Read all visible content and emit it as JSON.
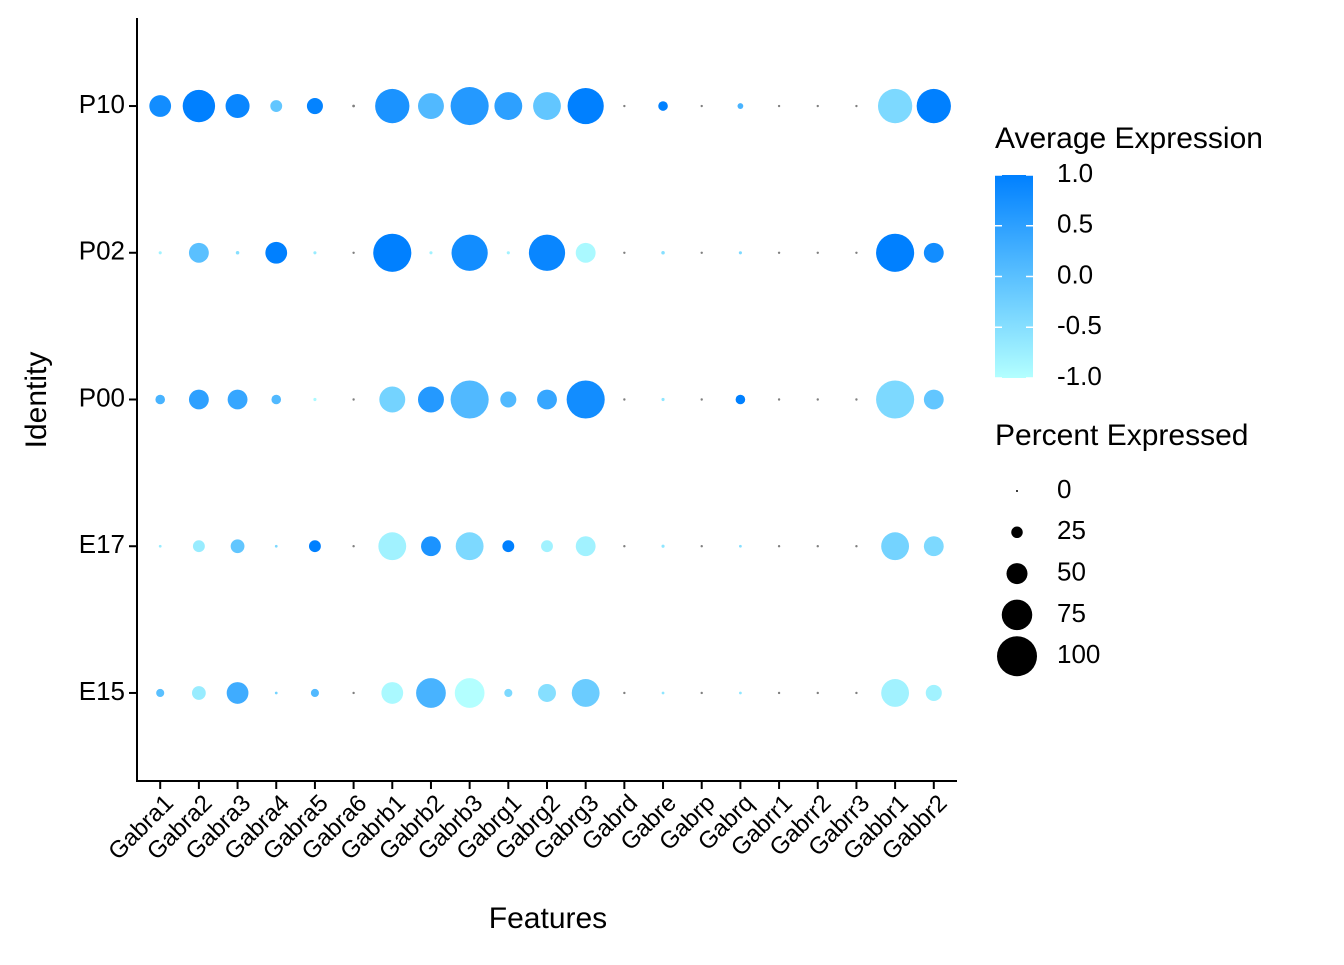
{
  "chart_data": {
    "type": "dotplot",
    "xlabel": "Features",
    "ylabel": "Identity",
    "categories": [
      "Gabra1",
      "Gabra2",
      "Gabra3",
      "Gabra4",
      "Gabra5",
      "Gabra6",
      "Gabrb1",
      "Gabrb2",
      "Gabrb3",
      "Gabrg1",
      "Gabrg2",
      "Gabrg3",
      "Gabrd",
      "Gabre",
      "Gabrp",
      "Gabrq",
      "Gabrr1",
      "Gabrr2",
      "Gabrr3",
      "Gabbr1",
      "Gabbr2"
    ],
    "series": [
      {
        "name": "E15",
        "avg_exp": [
          0.0,
          -0.7,
          0.3,
          -0.3,
          0.1,
          null,
          -0.9,
          0.2,
          -1.0,
          -0.4,
          -0.5,
          -0.2,
          null,
          -0.6,
          null,
          -0.6,
          null,
          null,
          null,
          -0.8,
          -0.8
        ],
        "pct_exp": [
          16,
          31,
          52,
          2,
          16,
          1,
          52,
          73,
          73,
          16,
          42,
          68,
          1,
          2,
          1,
          2,
          1,
          1,
          1,
          68,
          37
        ]
      },
      {
        "name": "E17",
        "avg_exp": [
          -0.7,
          -0.7,
          -0.1,
          -0.4,
          1.0,
          null,
          -0.8,
          0.7,
          -0.4,
          1.0,
          -0.8,
          -0.8,
          null,
          -0.6,
          null,
          -0.5,
          null,
          null,
          null,
          -0.3,
          -0.4
        ],
        "pct_exp": [
          2,
          26,
          31,
          2,
          26,
          1,
          68,
          47,
          68,
          26,
          26,
          47,
          1,
          3,
          1,
          2,
          1,
          1,
          1,
          68,
          47
        ]
      },
      {
        "name": "P00",
        "avg_exp": [
          0.2,
          0.5,
          0.4,
          0.1,
          -0.9,
          null,
          -0.3,
          0.6,
          0.1,
          0.1,
          0.4,
          0.8,
          null,
          -0.6,
          null,
          1.0,
          null,
          null,
          null,
          -0.4,
          -0.1
        ],
        "pct_exp": [
          20,
          47,
          47,
          20,
          3,
          1,
          63,
          63,
          95,
          37,
          47,
          95,
          1,
          3,
          1,
          20,
          1,
          1,
          1,
          95,
          47
        ]
      },
      {
        "name": "P02",
        "avg_exp": [
          -0.8,
          0.0,
          -0.5,
          1.0,
          -0.7,
          null,
          1.0,
          -0.8,
          0.8,
          -0.8,
          0.9,
          -0.9,
          null,
          -0.5,
          null,
          -0.4,
          null,
          null,
          null,
          1.0,
          0.8
        ],
        "pct_exp": [
          3,
          47,
          4,
          52,
          3,
          1,
          95,
          3,
          90,
          3,
          90,
          47,
          1,
          4,
          1,
          3,
          1,
          1,
          1,
          95,
          47
        ]
      },
      {
        "name": "P10",
        "avg_exp": [
          0.8,
          1.0,
          0.9,
          -0.1,
          0.95,
          null,
          0.7,
          0.1,
          0.6,
          0.5,
          -0.1,
          1.0,
          null,
          1.0,
          null,
          0.2,
          null,
          null,
          null,
          -0.4,
          1.0
        ],
        "pct_exp": [
          52,
          80,
          58,
          26,
          37,
          2,
          85,
          63,
          95,
          68,
          68,
          90,
          1,
          20,
          1,
          10,
          1,
          1,
          1,
          85,
          85
        ]
      }
    ],
    "color_scale": {
      "title": "Average Expression",
      "low": "#b3ffff",
      "high": "#0080ff",
      "na_color": "#7f7f7f",
      "lim": [
        -1,
        1
      ],
      "ticks": [
        {
          "value": 1,
          "label": "1.0"
        },
        0.5,
        {
          "value": 0,
          "label": "0.0"
        },
        -0.5,
        {
          "value": -1,
          "label": "-1.0"
        }
      ]
    },
    "size_legend": {
      "title": "Percent Expressed",
      "values": [
        0,
        25,
        50,
        75,
        100
      ]
    }
  }
}
